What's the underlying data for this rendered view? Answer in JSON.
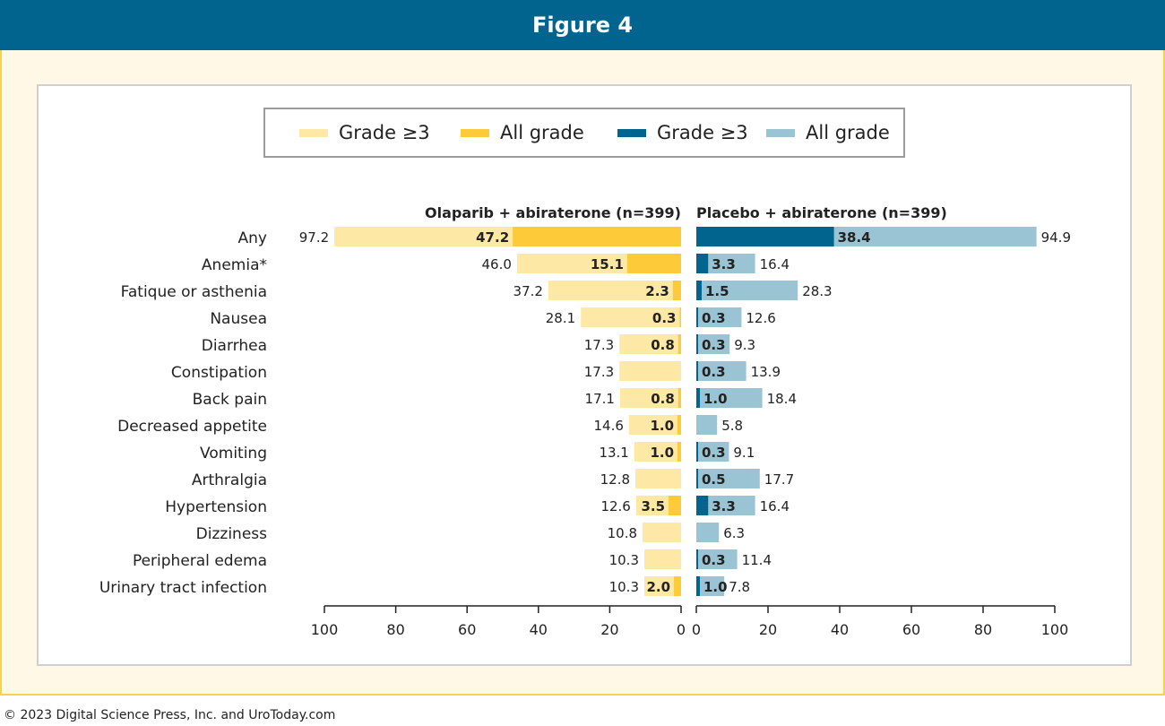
{
  "header": {
    "title": "Figure 4"
  },
  "legend": [
    {
      "label": "Grade ≥3",
      "color": "#fde8a6"
    },
    {
      "label": "All grade",
      "color": "#fdca3a"
    },
    {
      "label": "Grade ≥3",
      "color": "#00658e"
    },
    {
      "label": "All grade",
      "color": "#9ac3d3"
    }
  ],
  "footer": {
    "copyright": "© 2023 Digital Science Press, Inc. and UroToday.com"
  },
  "chart_data": {
    "type": "bar",
    "orientation": "horizontal",
    "layout": "butterfly",
    "categories": [
      "Any",
      "Anemia*",
      "Fatique or asthenia",
      "Nausea",
      "Diarrhea",
      "Constipation",
      "Back pain",
      "Decreased appetite",
      "Vomiting",
      "Arthralgia",
      "Hypertension",
      "Dizziness",
      "Peripheral edema",
      "Urinary tract infection"
    ],
    "panels": [
      {
        "title": "Olaparib + abiraterone (n=399)",
        "side": "left",
        "xlim": [
          0,
          100
        ],
        "ticks": [
          "100",
          "80",
          "60",
          "40",
          "20",
          "0"
        ],
        "all_grade": {
          "color": "#fde8a6",
          "values": [
            97.2,
            46.0,
            37.2,
            28.1,
            17.3,
            17.3,
            17.1,
            14.6,
            13.1,
            12.8,
            12.6,
            10.8,
            10.3,
            10.3
          ]
        },
        "grade3": {
          "color": "#fdca3a",
          "values": [
            47.2,
            15.1,
            2.3,
            0.3,
            0.8,
            null,
            0.8,
            1.0,
            1.0,
            null,
            3.5,
            null,
            null,
            2.0
          ]
        }
      },
      {
        "title": "Placebo + abiraterone (n=399)",
        "side": "right",
        "xlim": [
          0,
          100
        ],
        "ticks": [
          "0",
          "20",
          "40",
          "60",
          "80",
          "100"
        ],
        "all_grade": {
          "color": "#9ac3d3",
          "values": [
            94.9,
            16.4,
            28.3,
            12.6,
            9.3,
            13.9,
            18.4,
            5.8,
            9.1,
            17.7,
            16.4,
            6.3,
            11.4,
            7.8
          ]
        },
        "grade3": {
          "color": "#00658e",
          "values": [
            38.4,
            3.3,
            1.5,
            0.3,
            0.3,
            0.3,
            1.0,
            null,
            0.3,
            0.5,
            3.3,
            null,
            0.3,
            1.0
          ]
        }
      }
    ],
    "grid": false
  }
}
